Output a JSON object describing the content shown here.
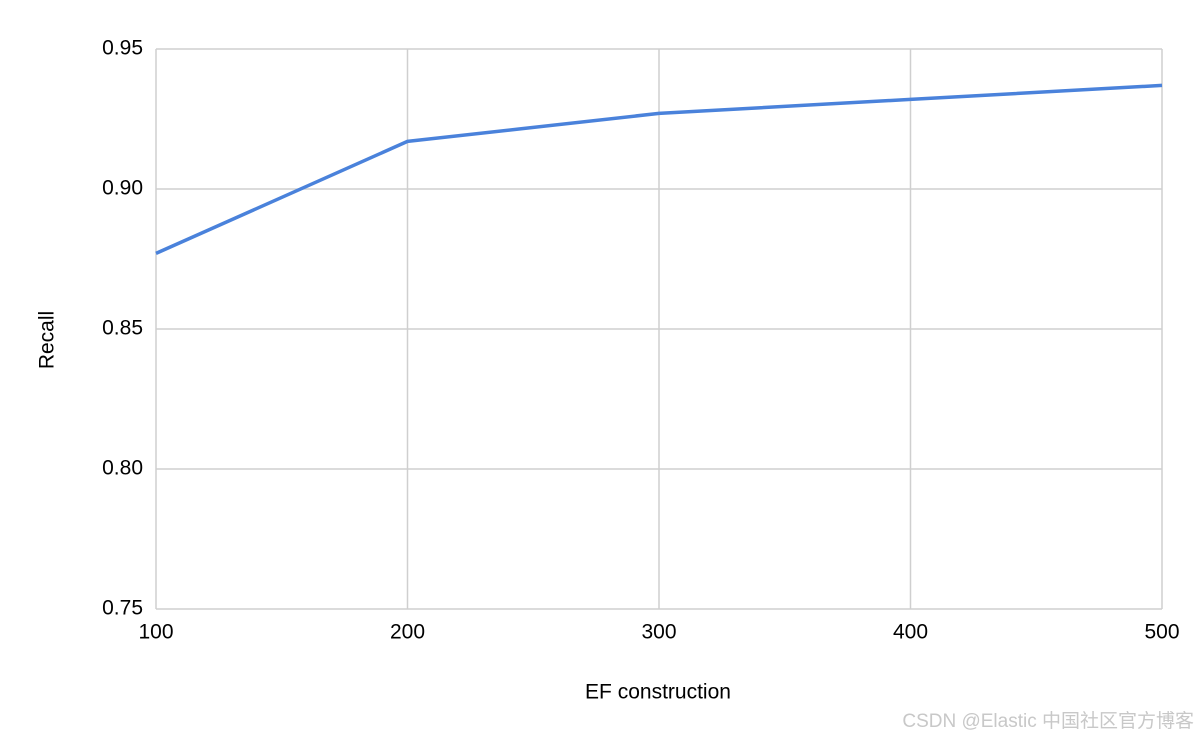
{
  "chart_data": {
    "type": "line",
    "x_label": "EF construction",
    "y_label": "Recall",
    "x": [
      100,
      200,
      300,
      400,
      500
    ],
    "series": [
      {
        "name": "Recall",
        "color": "#4a82db",
        "values": [
          0.877,
          0.917,
          0.927,
          0.932,
          0.937
        ]
      }
    ],
    "xlim": [
      100,
      500
    ],
    "xticks": [
      100,
      200,
      300,
      400,
      500
    ],
    "ylim": [
      0.75,
      0.95
    ],
    "yticks": [
      0.75,
      {
        "value": 0.8,
        "label": "0.80"
      },
      0.85,
      {
        "value": 0.9,
        "label": "0.90"
      },
      0.95
    ],
    "grid": true,
    "watermark": "CSDN @Elastic 中国社区官方博客"
  }
}
